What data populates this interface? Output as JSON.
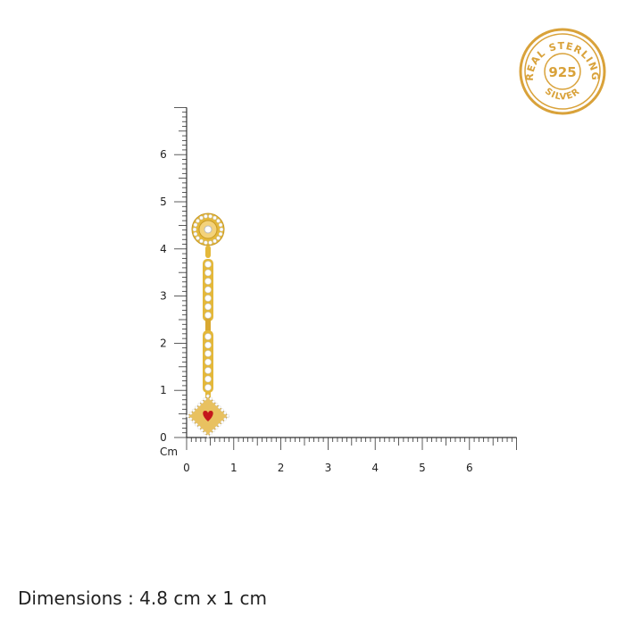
{
  "ruler": {
    "unit_label": "Cm",
    "vertical_labels": [
      "0",
      "1",
      "2",
      "3",
      "4",
      "5",
      "6"
    ],
    "horizontal_labels": [
      "0",
      "1",
      "2",
      "3",
      "4",
      "5",
      "6"
    ],
    "max_cm": 7
  },
  "seal": {
    "top_text": "REAL STERLING",
    "center_text": "925",
    "bottom_text": "SILVER",
    "color": "#d9a23a"
  },
  "product": {
    "metal_color": "#e4b83a",
    "stone_color": "#ffffff",
    "enamel_color": "#c4161c"
  },
  "caption": "Dimensions : 4.8 cm x 1 cm"
}
